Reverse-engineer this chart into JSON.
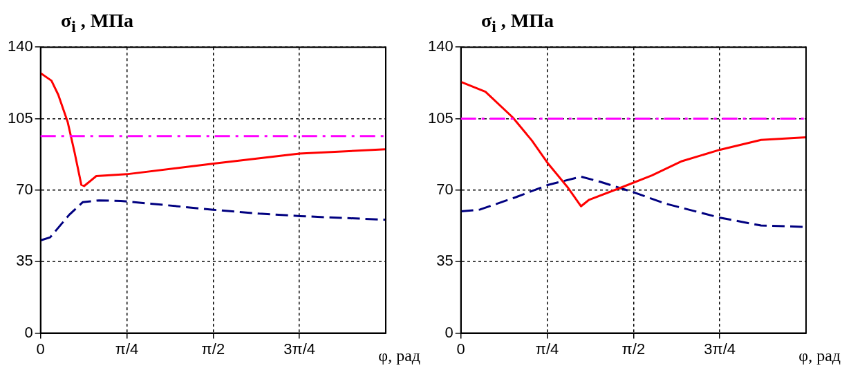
{
  "chart_data": [
    {
      "type": "line",
      "ylabel": "σ$_{i}$ , МПа",
      "xlabel": "φ, рад",
      "xlim": [
        0,
        3.1416
      ],
      "xticks": [
        0,
        {
          "value": 0.7854,
          "label": "π/4"
        },
        {
          "value": 1.5708,
          "label": "π/2"
        },
        {
          "value": 2.3562,
          "label": "3π/4"
        }
      ],
      "ylim": [
        0,
        140
      ],
      "yticks": [
        0,
        35,
        70,
        105,
        140
      ],
      "grid": true,
      "legend": false,
      "marker": "none",
      "series": [
        {
          "color": "#ff0000",
          "line_style": "solid",
          "x": [
            0,
            0.099,
            0.161,
            0.247,
            0.309,
            0.371,
            0.396,
            0.507,
            0.784,
            1.576,
            2.357,
            3.1416
          ],
          "values": [
            127.3,
            123.6,
            116.7,
            103.3,
            88.6,
            72.6,
            72,
            76.9,
            77.8,
            83,
            87.9,
            90
          ]
        },
        {
          "color": "#000080",
          "line_style": "dashed",
          "x": [
            0,
            0.087,
            0.26,
            0.383,
            0.532,
            0.73,
            1.002,
            1.571,
            1.991,
            2.362,
            3.1416
          ],
          "values": [
            45.4,
            46.9,
            57.9,
            64.1,
            65,
            64.7,
            63.4,
            60.4,
            58.5,
            57.3,
            55.5
          ]
        }
      ],
      "ref_lines": [
        {
          "axis": "y",
          "value": 96.5,
          "color": "#ff00ff",
          "line_style": "dashed"
        }
      ]
    },
    {
      "type": "line",
      "ylabel": "σ$_{i}$ , МПа",
      "xlabel": "φ, рад",
      "xlim": [
        0,
        3.1416
      ],
      "xticks": [
        0,
        {
          "value": 0.7854,
          "label": "π/4"
        },
        {
          "value": 1.5708,
          "label": "π/2"
        },
        {
          "value": 2.3562,
          "label": "3π/4"
        }
      ],
      "ylim": [
        0,
        140
      ],
      "yticks": [
        0,
        35,
        70,
        105,
        140
      ],
      "grid": true,
      "legend": false,
      "marker": "none",
      "series": [
        {
          "color": "#ff0000",
          "line_style": "solid",
          "x": [
            0,
            0.2235,
            0.472,
            0.646,
            0.795,
            0.969,
            1.093,
            1.167,
            1.44,
            1.738,
            2.012,
            2.359,
            2.732,
            3.1416
          ],
          "values": [
            123,
            118.2,
            105.6,
            94.3,
            82.9,
            71.6,
            62.1,
            65.3,
            70.9,
            77.2,
            84.2,
            89.8,
            94.6,
            95.9
          ]
        },
        {
          "color": "#000080",
          "line_style": "dashed",
          "x": [
            0,
            0.174,
            0.497,
            0.795,
            1.093,
            1.267,
            1.565,
            1.863,
            2.359,
            2.732,
            3.1416
          ],
          "values": [
            59.6,
            60.5,
            66.5,
            72.6,
            76.6,
            74.1,
            69.1,
            63.4,
            56.5,
            52.7,
            52
          ]
        }
      ],
      "ref_lines": [
        {
          "axis": "y",
          "value": 105,
          "color": "#ff00ff",
          "line_style": "dashed"
        }
      ]
    }
  ]
}
